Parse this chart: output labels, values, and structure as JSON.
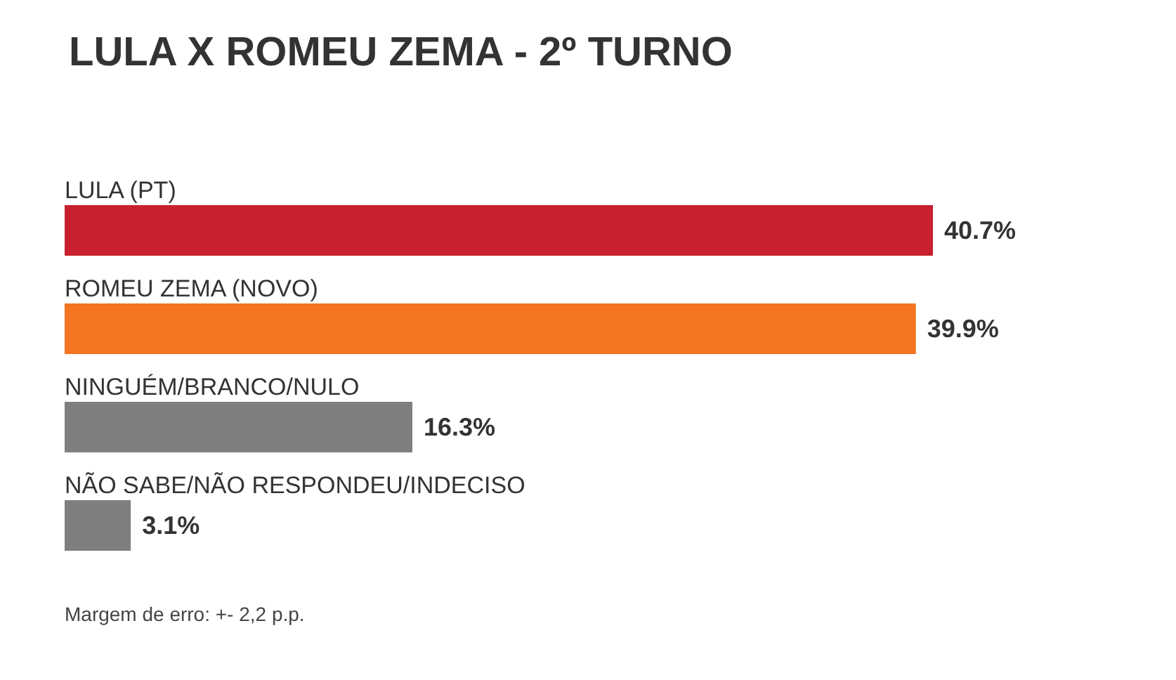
{
  "chart_data": {
    "type": "bar",
    "orientation": "horizontal",
    "title": "LULA X ROMEU ZEMA - 2º TURNO",
    "categories": [
      "LULA (PT)",
      "ROMEU ZEMA (NOVO)",
      "NINGUÉM/BRANCO/NULO",
      "NÃO SABE/NÃO RESPONDEU/INDECISO"
    ],
    "values": [
      40.7,
      39.9,
      16.3,
      3.1
    ],
    "colors": [
      "#c8202f",
      "#f47421",
      "#7f7f7f",
      "#7f7f7f"
    ],
    "value_labels": [
      "40.7%",
      "39.9%",
      "16.3%",
      "3.1%"
    ],
    "annotations": [
      "Margem de erro: +- 2,2 p.p."
    ]
  }
}
